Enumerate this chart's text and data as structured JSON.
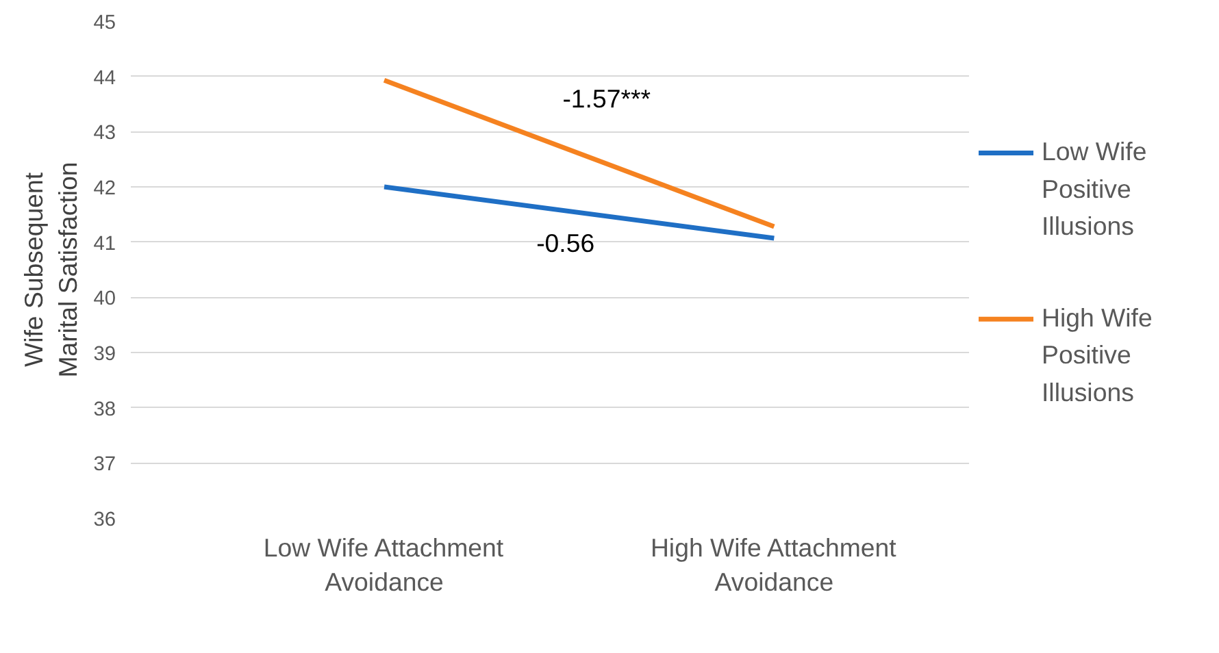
{
  "chart_data": {
    "type": "line",
    "ylabel": "Wife Subsequent Marital Satisfaction",
    "categories": [
      "Low Wife Attachment Avoidance",
      "High Wife Attachment Avoidance"
    ],
    "series": [
      {
        "name": "Low Wife Positive Illusions",
        "color": "#1f6fc5",
        "values": [
          42.0,
          41.07
        ]
      },
      {
        "name": "High Wife Positive Illusions",
        "color": "#f58220",
        "values": [
          43.93,
          41.28
        ]
      }
    ],
    "ylim": [
      36,
      45
    ],
    "yticks": [
      36,
      37,
      38,
      39,
      40,
      41,
      42,
      43,
      44,
      45
    ],
    "grid": "y",
    "legend": "right",
    "marker": "none",
    "annotations": [
      "-1.57***",
      "-0.56"
    ]
  }
}
